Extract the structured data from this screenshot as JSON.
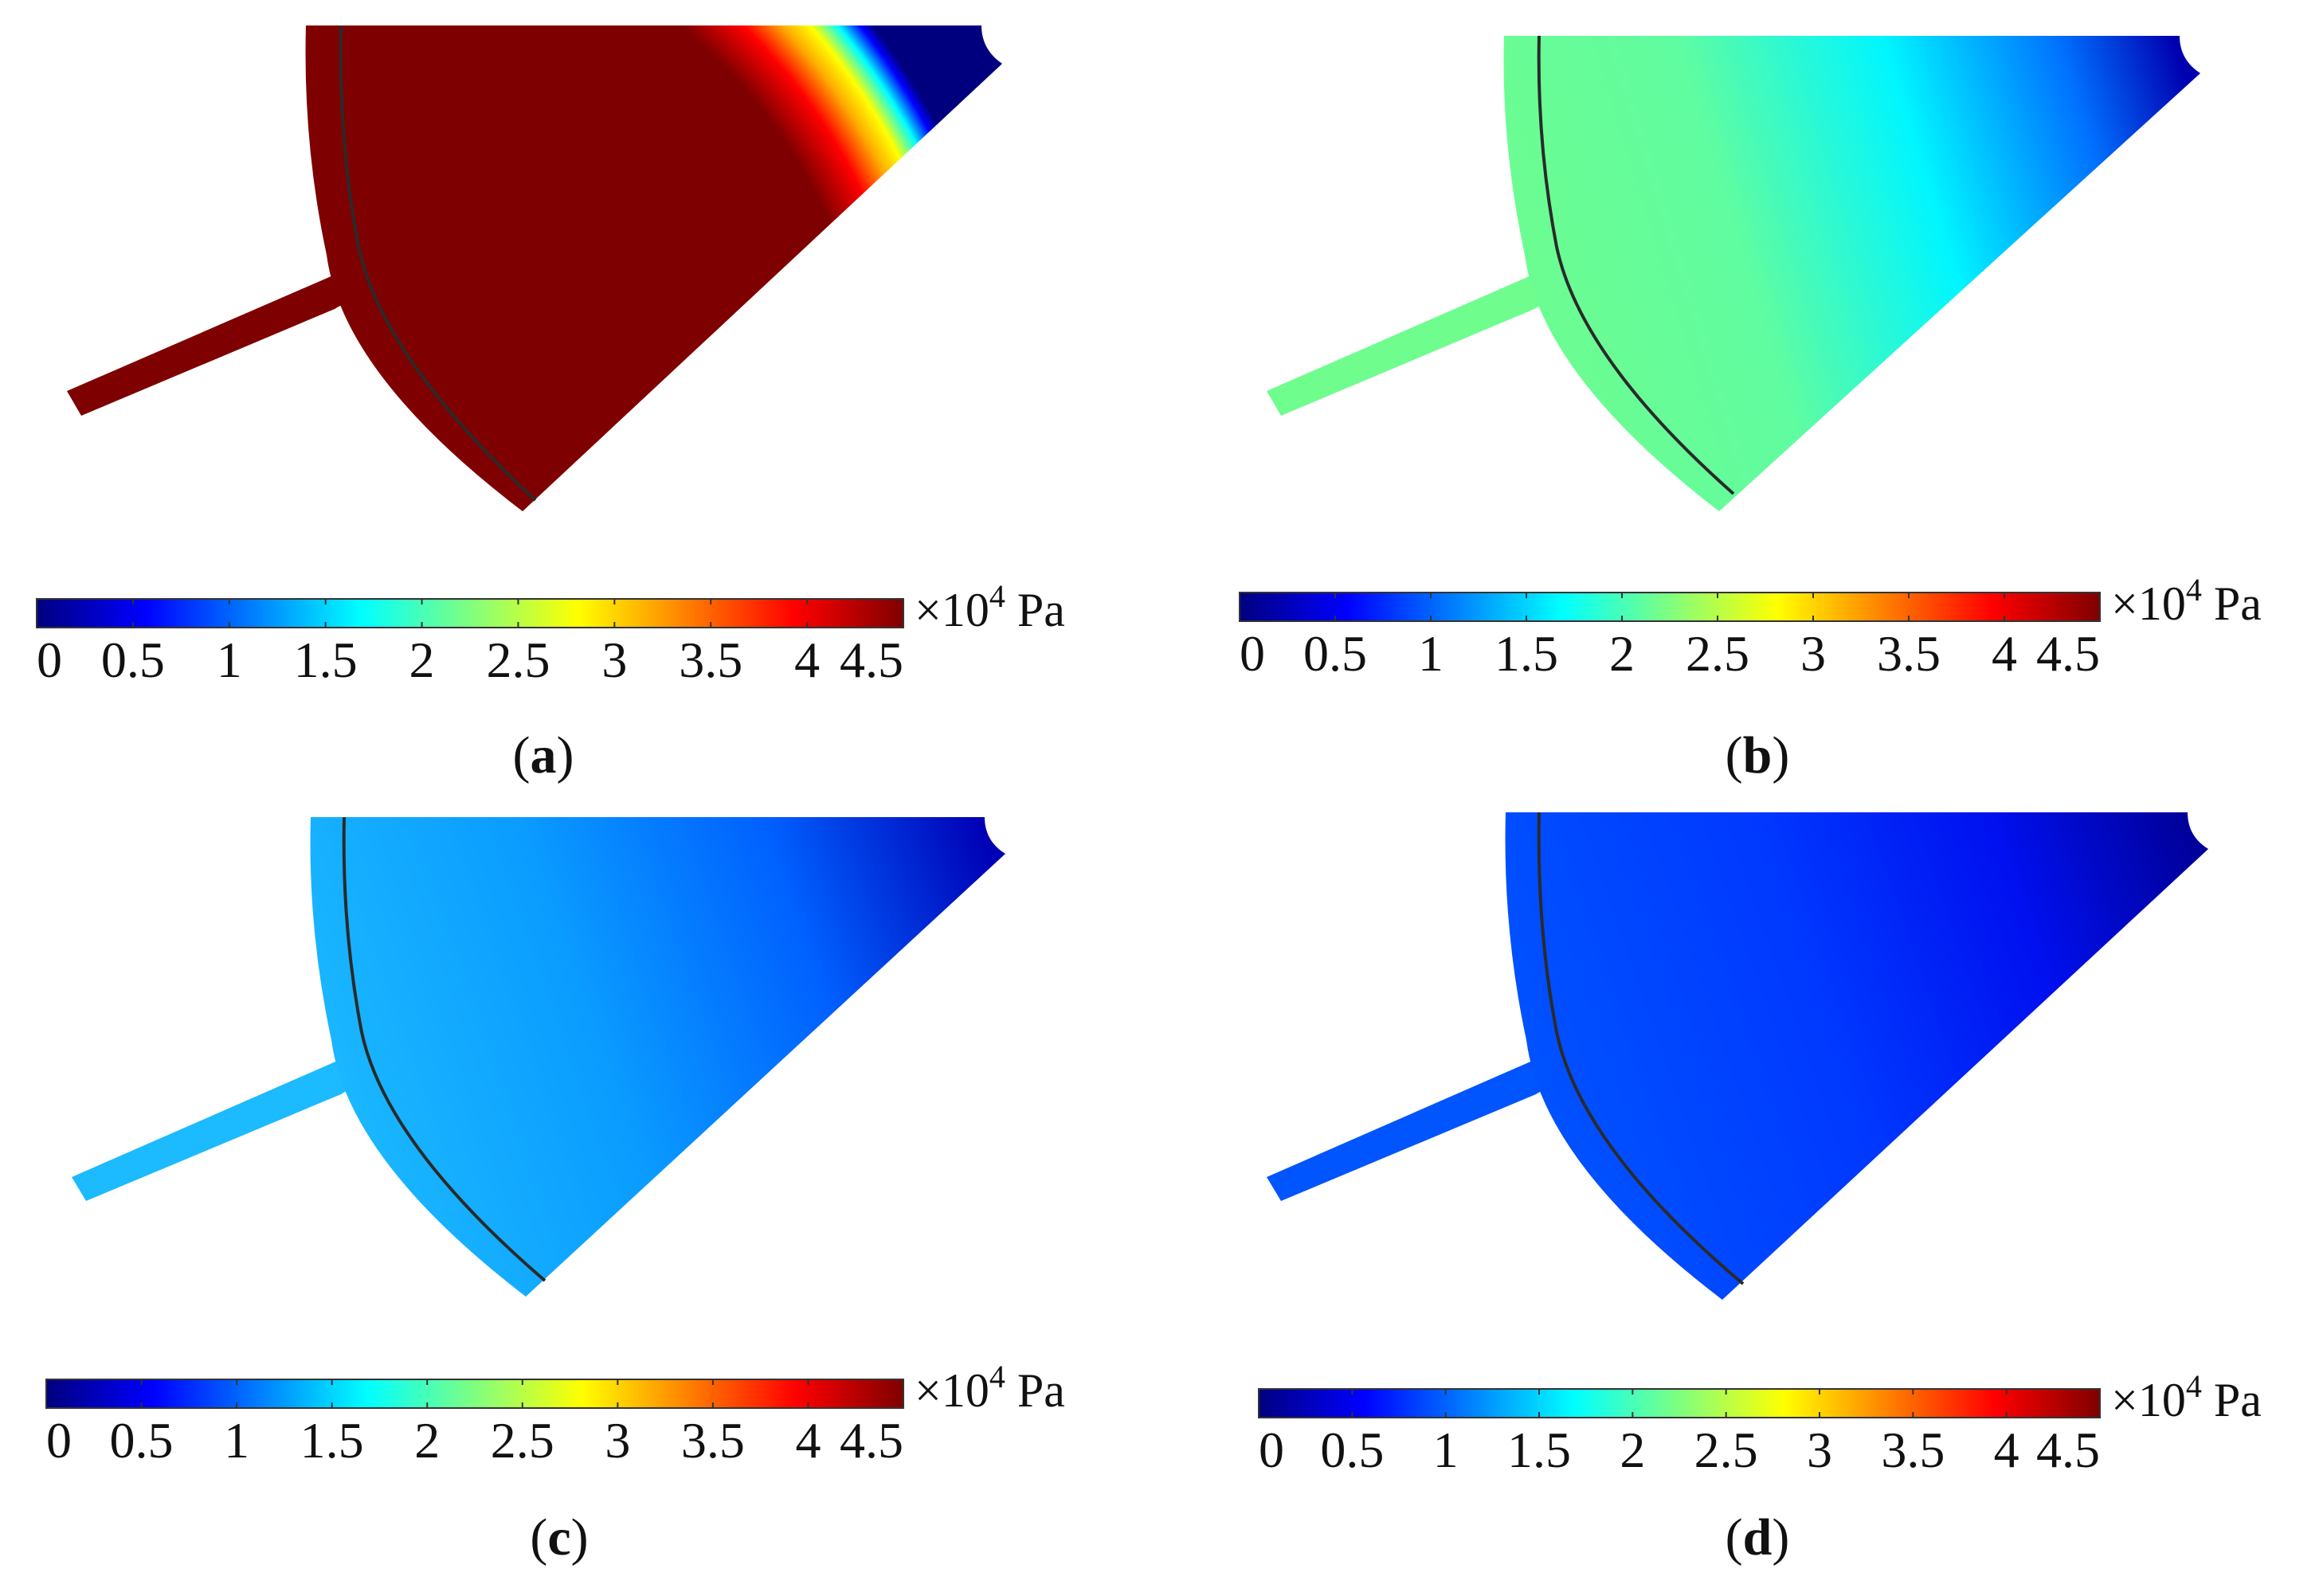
{
  "figure": {
    "colormap": "jet",
    "colormap_stops": [
      "#00007f",
      "#0000ff",
      "#007fff",
      "#00ffff",
      "#7fff7f",
      "#ffff00",
      "#ff7f00",
      "#ff0000",
      "#7f0000"
    ],
    "colorbar": {
      "min": 0,
      "max": 4.5,
      "tick_labels": [
        "0",
        "0.5",
        "1",
        "1.5",
        "2",
        "2.5",
        "3",
        "3.5",
        "4",
        "4.5"
      ],
      "unit": "×10",
      "unit_exponent": "4",
      "unit_suffix": "Pa"
    },
    "panels": [
      {
        "id": "a",
        "caption_open": "(",
        "caption_letter": "a",
        "caption_close": ")",
        "field_colors": {
          "body": "#7f0000",
          "ring": "#7f0000",
          "channel": "#7f0000"
        },
        "tip_gradient": [
          "#7f0000",
          "#ff0000",
          "#ffaa00",
          "#ffff00",
          "#00ffff",
          "#0000ff",
          "#00007f"
        ]
      },
      {
        "id": "b",
        "caption_open": "(",
        "caption_letter": "b",
        "caption_close": ")",
        "field_colors": {
          "body_left": "#6ffd8e",
          "body_mid": "#00f6ff",
          "body_right": "#0000d8",
          "ring": "#6ffd8e",
          "channel": "#6ffd8e"
        }
      },
      {
        "id": "c",
        "caption_open": "(",
        "caption_letter": "c",
        "caption_close": ")",
        "field_colors": {
          "body_left": "#1cbaff",
          "body_mid": "#0072ff",
          "body_right": "#0000cc",
          "ring": "#1cbaff",
          "channel": "#1cbaff"
        }
      },
      {
        "id": "d",
        "caption_open": "(",
        "caption_letter": "d",
        "caption_close": ")",
        "field_colors": {
          "body_left": "#0055ff",
          "body_mid": "#0020ff",
          "body_right": "#0000b5",
          "ring": "#0055ff",
          "channel": "#0055ff"
        }
      }
    ]
  }
}
